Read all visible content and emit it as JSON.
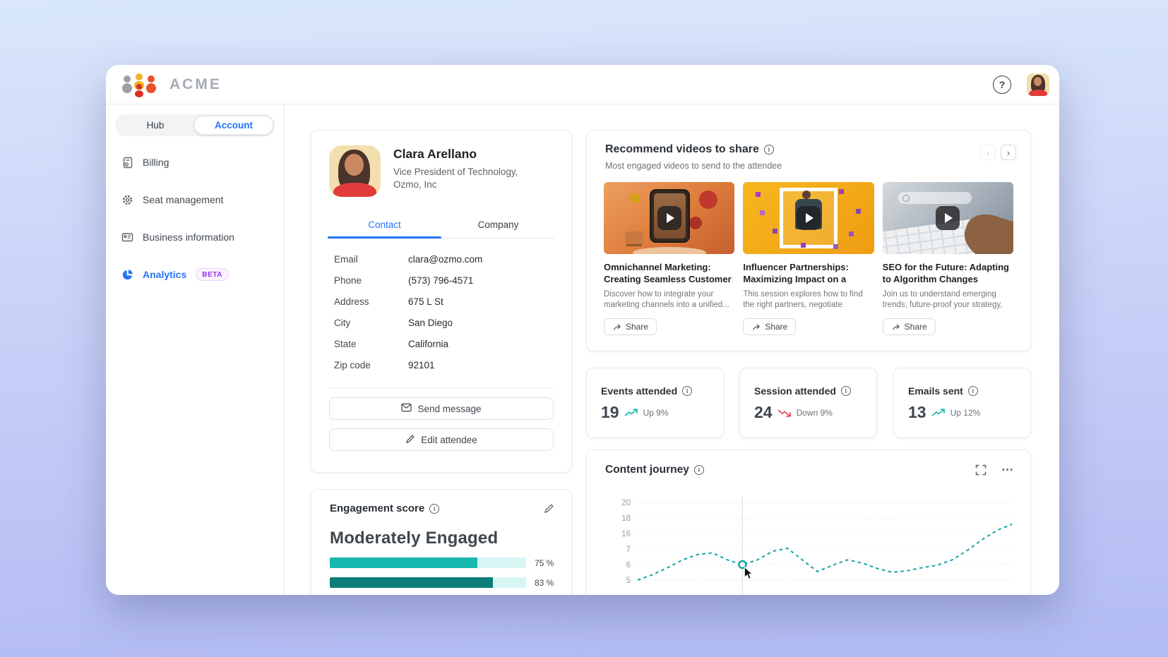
{
  "header": {
    "brand": "ACME",
    "help_label": "?"
  },
  "sidebar": {
    "toggle": [
      {
        "label": "Hub"
      },
      {
        "label": "Account"
      }
    ],
    "items": [
      {
        "label": "Billing",
        "icon": "invoice-icon"
      },
      {
        "label": "Seat management",
        "icon": "gear-icon"
      },
      {
        "label": "Business information",
        "icon": "id-card-icon"
      },
      {
        "label": "Analytics",
        "icon": "pie-chart-icon",
        "badge": "BETA"
      }
    ]
  },
  "profile": {
    "name": "Clara Arellano",
    "title_line1": "Vice President of Technology,",
    "title_line2": "Ozmo, Inc",
    "tabs": [
      {
        "label": "Contact"
      },
      {
        "label": "Company"
      }
    ],
    "details": [
      {
        "label": "Email",
        "value": "clara@ozmo.com"
      },
      {
        "label": "Phone",
        "value": "(573) 796-4571"
      },
      {
        "label": "Address",
        "value": "675 L St"
      },
      {
        "label": "City",
        "value": "San Diego"
      },
      {
        "label": "State",
        "value": "California"
      },
      {
        "label": "Zip code",
        "value": "92101"
      }
    ],
    "actions": {
      "send_message": "Send message",
      "edit_attendee": "Edit attendee"
    }
  },
  "engagement": {
    "title": "Engagement score",
    "level": "Moderately Engaged",
    "bars": [
      {
        "pct": 75,
        "label": "75 %",
        "color": "#17b8ae"
      },
      {
        "pct": 83,
        "label": "83 %",
        "color": "#0c7d79"
      }
    ]
  },
  "videos": {
    "title": "Recommend videos to share",
    "subtitle": "Most engaged videos to send to the attendee",
    "share_label": "Share",
    "items": [
      {
        "title": "Omnichannel Marketing: Creating Seamless Customer Experiences",
        "description": "Discover how to integrate your marketing channels into a unified..."
      },
      {
        "title": "Influencer Partnerships: Maximizing Impact on a Budget",
        "description": "This session explores how to find the right partners, negotiate smartly..."
      },
      {
        "title": "SEO for the Future: Adapting to Algorithm Changes",
        "description": "Join us to understand emerging trends, future-proof your strategy, and ensure..."
      }
    ]
  },
  "stats": [
    {
      "title": "Events attended",
      "value": "19",
      "trend": "up",
      "trend_label": "Up 9%"
    },
    {
      "title": "Session attended",
      "value": "24",
      "trend": "down",
      "trend_label": "Down 9%"
    },
    {
      "title": "Emails sent",
      "value": "13",
      "trend": "up",
      "trend_label": "Up 12%"
    }
  ],
  "journey": {
    "title": "Content journey"
  },
  "chart_data": {
    "type": "line",
    "title": "Content journey",
    "style": "dashed",
    "color": "#16a3a3",
    "grid": true,
    "y_ticks": [
      5,
      6,
      7,
      16,
      18,
      20
    ],
    "values": [
      5,
      5.35,
      5.8,
      6.3,
      6.65,
      6.75,
      6.3,
      6,
      6.3,
      6.85,
      7.05,
      6.3,
      5.55,
      5.95,
      6.3,
      6.1,
      5.75,
      5.5,
      5.6,
      5.8,
      5.95,
      6.3,
      6.9,
      7.6,
      8.2,
      8.6
    ],
    "hover_index": 7,
    "hover_value": 6,
    "x_labels_visible": false
  },
  "colors": {
    "accent_blue": "#2574f5",
    "teal": "#17b8ae",
    "dark_teal": "#0c7d79",
    "down_red": "#e5484d"
  }
}
